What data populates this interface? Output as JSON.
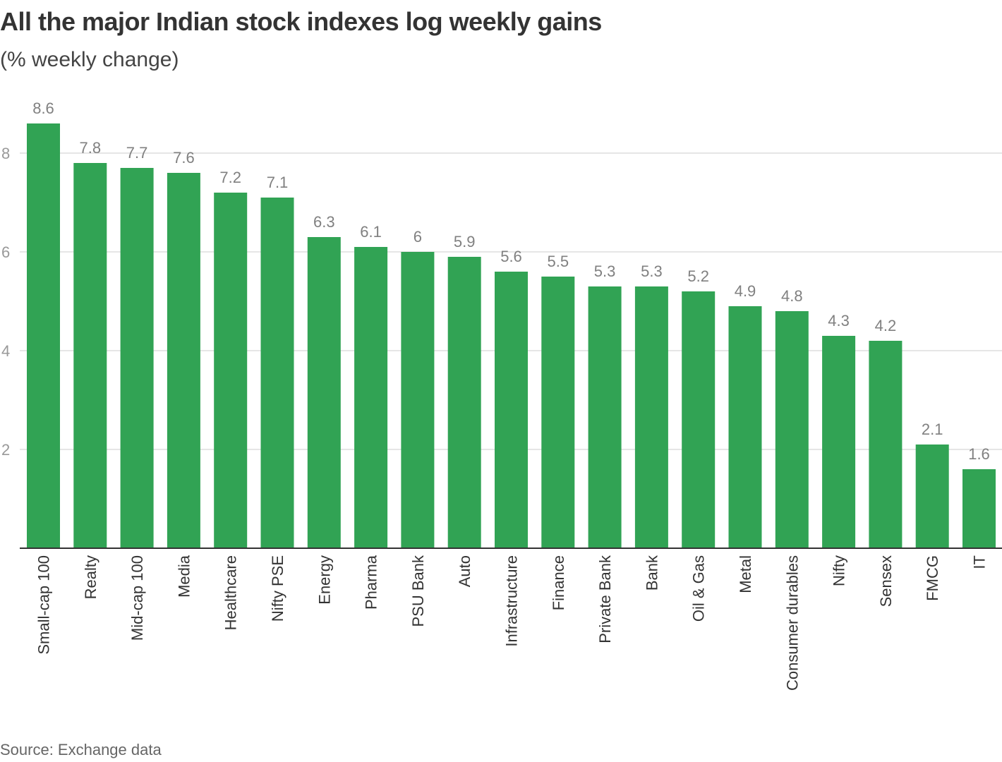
{
  "header": {
    "title": "All the major Indian stock indexes log weekly gains",
    "subtitle": "(% weekly change)"
  },
  "footer": {
    "source": "Source: Exchange data"
  },
  "colors": {
    "bar": "#31a354",
    "grid": "#cccccc",
    "axis": "#333333"
  },
  "chart_data": {
    "type": "bar",
    "title": "All the major Indian stock indexes log weekly gains",
    "subtitle": "(% weekly change)",
    "xlabel": "",
    "ylabel": "",
    "ylim": [
      0,
      8.6
    ],
    "yticks": [
      2,
      4,
      6,
      8
    ],
    "grid": true,
    "categories": [
      "Small-cap 100",
      "Realty",
      "Mid-cap 100",
      "Media",
      "Healthcare",
      "Nifty PSE",
      "Energy",
      "Pharma",
      "PSU Bank",
      "Auto",
      "Infrastructure",
      "Finance",
      "Private Bank",
      "Bank",
      "Oil & Gas",
      "Metal",
      "Consumer durables",
      "Nifty",
      "Sensex",
      "FMCG",
      "IT"
    ],
    "values": [
      8.6,
      7.8,
      7.7,
      7.6,
      7.2,
      7.1,
      6.3,
      6.1,
      6,
      5.9,
      5.6,
      5.5,
      5.3,
      5.3,
      5.2,
      4.9,
      4.8,
      4.3,
      4.2,
      2.1,
      1.6
    ],
    "value_labels": [
      "8.6",
      "7.8",
      "7.7",
      "7.6",
      "7.2",
      "7.1",
      "6.3",
      "6.1",
      "6",
      "5.9",
      "5.6",
      "5.5",
      "5.3",
      "5.3",
      "5.2",
      "4.9",
      "4.8",
      "4.3",
      "4.2",
      "2.1",
      "1.6"
    ]
  }
}
